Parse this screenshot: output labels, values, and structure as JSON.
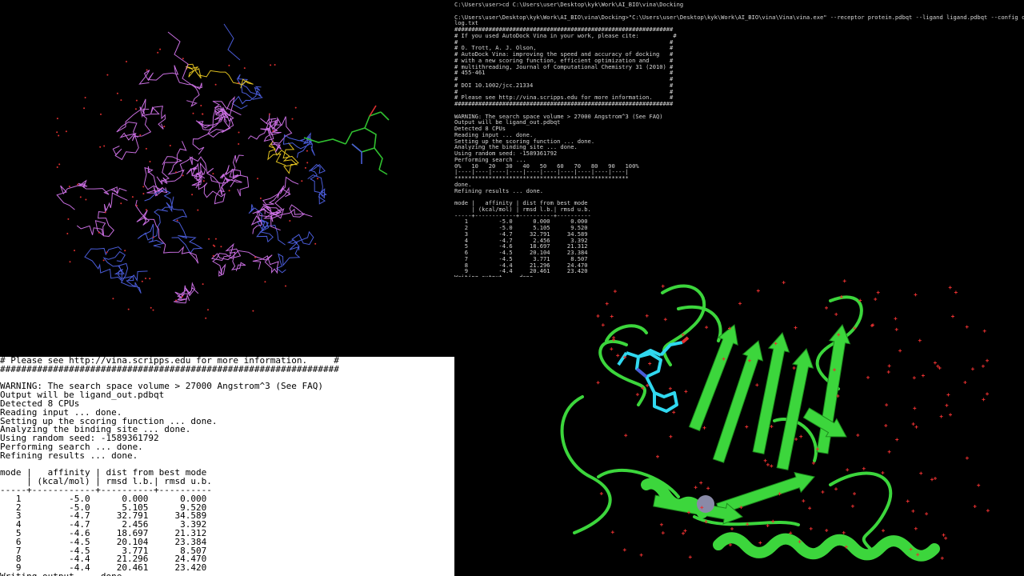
{
  "terminal": {
    "lines": [
      "C:\\Users\\user>cd C:\\Users\\user\\Desktop\\kyk\\Work\\AI_BIO\\vina\\Docking",
      "",
      "C:\\Users\\user\\Desktop\\kyk\\Work\\AI_BIO\\vina\\Docking>\"C:\\Users\\user\\Desktop\\kyk\\Work\\AI_BIO\\vina\\Vina\\vina.exe\" --receptor protein.pdbqt --ligand ligand.pdbqt --config config.txt --log",
      "log.txt",
      "################################################################",
      "# If you used AutoDock Vina in your work, please cite:          #",
      "#                                                              #",
      "# O. Trott, A. J. Olson,                                       #",
      "# AutoDock Vina: improving the speed and accuracy of docking   #",
      "# with a new scoring function, efficient optimization and      #",
      "# multithreading, Journal of Computational Chemistry 31 (2010) #",
      "# 455-461                                                      #",
      "#                                                              #",
      "# DOI 10.1002/jcc.21334                                        #",
      "#                                                              #",
      "# Please see http://vina.scripps.edu for more information.     #",
      "################################################################",
      "",
      "WARNING: The search space volume > 27000 Angstrom^3 (See FAQ)",
      "Output will be ligand_out.pdbqt",
      "Detected 8 CPUs",
      "Reading input ... done.",
      "Setting up the scoring function ... done.",
      "Analyzing the binding site ... done.",
      "Using random seed: -1589361792",
      "Performing search ...",
      "0%   10   20   30   40   50   60   70   80   90   100%",
      "|----|----|----|----|----|----|----|----|----|----|",
      "***************************************************",
      "done.",
      "Refining results ... done.",
      "",
      "mode |   affinity | dist from best mode",
      "     | (kcal/mol) | rmsd l.b.| rmsd u.b.",
      "-----+------------+----------+----------",
      "   1         -5.0      0.000      0.000",
      "   2         -5.0      5.105      9.520",
      "   3         -4.7     32.791     34.589",
      "   4         -4.7      2.456      3.392",
      "   5         -4.6     18.697     21.312",
      "   6         -4.5     20.104     23.384",
      "   7         -4.5      3.771      8.507",
      "   8         -4.4     21.296     24.470",
      "   9         -4.4     20.461     23.420",
      "Writing output ... done."
    ]
  },
  "zoom": {
    "lines": [
      "# Please see http://vina.scripps.edu for more information.     #",
      "################################################################",
      "",
      "WARNING: The search space volume > 27000 Angstrom^3 (See FAQ)",
      "Output will be ligand_out.pdbqt",
      "Detected 8 CPUs",
      "Reading input ... done.",
      "Setting up the scoring function ... done.",
      "Analyzing the binding site ... done.",
      "Using random seed: -1589361792",
      "Performing search ... done.",
      "Refining results ... done.",
      "",
      "mode |   affinity | dist from best mode",
      "     | (kcal/mol) | rmsd l.b.| rmsd u.b.",
      "-----+------------+----------+----------",
      "   1         -5.0      0.000      0.000",
      "   2         -5.0      5.105      9.520",
      "   3         -4.7     32.791     34.589",
      "   4         -4.7      2.456      3.392",
      "   5         -4.6     18.697     21.312",
      "   6         -4.5     20.104     23.384",
      "   7         -4.5      3.771      8.507",
      "   8         -4.4     21.296     24.470",
      "   9         -4.4     20.461     23.420",
      "Writing output ... done."
    ]
  },
  "colors": {
    "protein_stick": "#c86ee0",
    "nitrogen": "#4a5cd8",
    "oxygen": "#e03030",
    "sulfur": "#e0c020",
    "ligand_green": "#30c030",
    "cartoon_green": "#3cd63c",
    "ligand_cyan": "#30d8f0",
    "water_red": "#e83030",
    "metal_ion": "#8a8aa8"
  }
}
